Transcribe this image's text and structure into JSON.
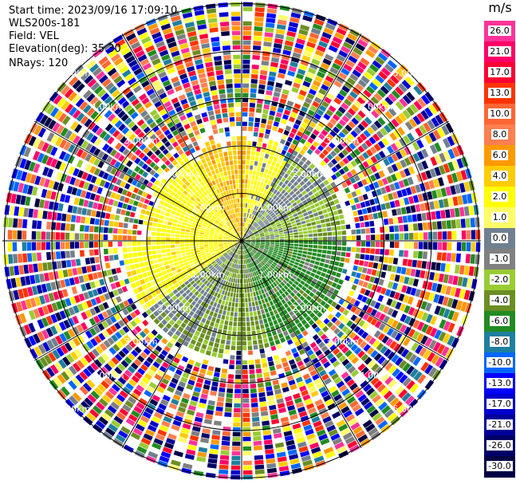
{
  "info": {
    "start_time": "Start time: 2023/09/16 17:09:10",
    "station": "WLS200s-181",
    "field": "Field: VEL",
    "elevation": "Elevation(deg): 35.30",
    "nrays": "NRays: 120"
  },
  "range_labels": [
    "1.00km",
    "2.00km",
    "3.00km",
    "4.00km",
    "5.00km",
    "6.00km"
  ],
  "colorbar": {
    "unit": "m/s",
    "levels": [
      {
        "label": "26.0",
        "color": "#ff3399"
      },
      {
        "label": "21.0",
        "color": "#ff0066"
      },
      {
        "label": "17.0",
        "color": "#ff0033"
      },
      {
        "label": "13.0",
        "color": "#ff3300"
      },
      {
        "label": "10.0",
        "color": "#ff6633"
      },
      {
        "label": "8.0",
        "color": "#ff7f50"
      },
      {
        "label": "6.0",
        "color": "#ff9900"
      },
      {
        "label": "4.0",
        "color": "#ffcc00"
      },
      {
        "label": "2.0",
        "color": "#ffff00"
      },
      {
        "label": "1.0",
        "color": "#fffe66"
      },
      {
        "label": "0.0",
        "color": "#708090"
      },
      {
        "label": "-1.0",
        "color": "#808080"
      },
      {
        "label": "-2.0",
        "color": "#99cc33"
      },
      {
        "label": "-4.0",
        "color": "#6b8e23"
      },
      {
        "label": "-6.0",
        "color": "#228b22"
      },
      {
        "label": "-8.0",
        "color": "#1e7f9f"
      },
      {
        "label": "-10.0",
        "color": "#0066ff"
      },
      {
        "label": "-13.0",
        "color": "#0000ff"
      },
      {
        "label": "-17.0",
        "color": "#0000cc"
      },
      {
        "label": "-21.0",
        "color": "#000099"
      },
      {
        "label": "-26.0",
        "color": "#000066"
      },
      {
        "label": "-30.0",
        "color": "#000044"
      }
    ]
  }
}
